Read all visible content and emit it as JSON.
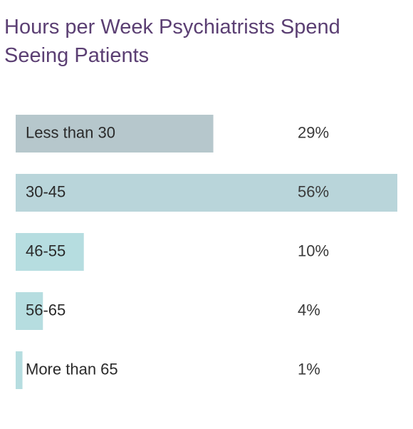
{
  "chart_data": {
    "type": "bar",
    "orientation": "horizontal",
    "title": "Hours per Week Psychiatrists Spend Seeing Patients",
    "categories": [
      "Less than 30",
      "30-45",
      "46-55",
      "56-65",
      "More than 65"
    ],
    "values": [
      29,
      56,
      10,
      4,
      1
    ],
    "value_labels": [
      "29%",
      "56%",
      "10%",
      "4%",
      "1%"
    ],
    "colors": [
      "#b6c7cc",
      "#b9d5da",
      "#b6dde0",
      "#b6dde0",
      "#b6dde0"
    ]
  }
}
